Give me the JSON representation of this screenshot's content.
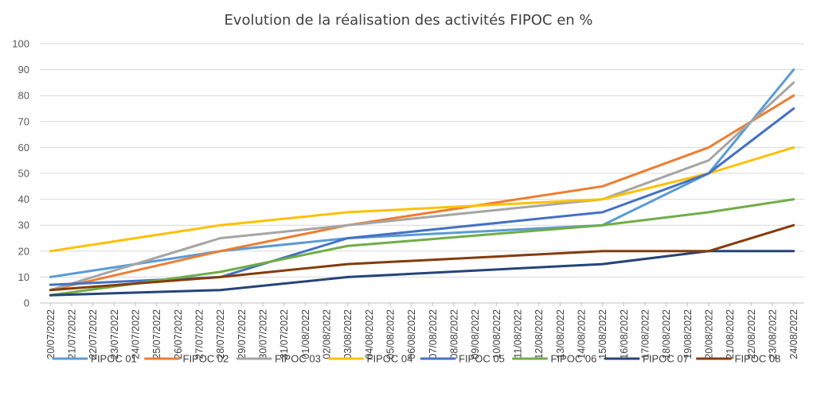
{
  "chart_data": {
    "type": "line",
    "title": "Evolution de la réalisation des activités FIPOC en %",
    "xlabel": "",
    "ylabel": "",
    "ylim": [
      0,
      100
    ],
    "yticks": [
      0,
      10,
      20,
      30,
      40,
      50,
      60,
      70,
      80,
      90,
      100
    ],
    "grid": true,
    "legend_position": "bottom",
    "categories": [
      "20/07/2022",
      "21/07/2022",
      "22/07/2022",
      "23/07/2022",
      "24/07/2022",
      "25/07/2022",
      "26/07/2022",
      "27/07/2022",
      "28/07/2022",
      "29/07/2022",
      "30/07/2022",
      "31/07/2022",
      "01/08/2022",
      "02/08/2022",
      "03/08/2022",
      "04/08/2022",
      "05/08/2022",
      "06/08/2022",
      "07/08/2022",
      "08/08/2022",
      "09/08/2022",
      "10/08/2022",
      "11/08/2022",
      "12/08/2022",
      "13/08/2022",
      "14/08/2022",
      "15/08/2022",
      "16/08/2022",
      "17/08/2022",
      "18/08/2022",
      "19/08/2022",
      "20/08/2022",
      "21/08/2022",
      "22/08/2022",
      "23/08/2022",
      "24/08/2022"
    ],
    "series": [
      {
        "name": "FIPOC 01",
        "color": "#5B9BD5",
        "points": [
          {
            "x": "20/07/2022",
            "y": 10
          },
          {
            "x": "28/07/2022",
            "y": 20
          },
          {
            "x": "03/08/2022",
            "y": 25
          },
          {
            "x": "15/08/2022",
            "y": 30
          },
          {
            "x": "20/08/2022",
            "y": 50
          },
          {
            "x": "24/08/2022",
            "y": 90
          }
        ]
      },
      {
        "name": "FIPOC 02",
        "color": "#ED7D31",
        "points": [
          {
            "x": "20/07/2022",
            "y": 5
          },
          {
            "x": "28/07/2022",
            "y": 20
          },
          {
            "x": "03/08/2022",
            "y": 30
          },
          {
            "x": "15/08/2022",
            "y": 45
          },
          {
            "x": "20/08/2022",
            "y": 60
          },
          {
            "x": "24/08/2022",
            "y": 80
          }
        ]
      },
      {
        "name": "FIPOC 03",
        "color": "#A5A5A5",
        "points": [
          {
            "x": "20/07/2022",
            "y": 5
          },
          {
            "x": "28/07/2022",
            "y": 25
          },
          {
            "x": "03/08/2022",
            "y": 30
          },
          {
            "x": "15/08/2022",
            "y": 40
          },
          {
            "x": "20/08/2022",
            "y": 55
          },
          {
            "x": "24/08/2022",
            "y": 85
          }
        ]
      },
      {
        "name": "FIPOC 04",
        "color": "#FFC000",
        "points": [
          {
            "x": "20/07/2022",
            "y": 20
          },
          {
            "x": "28/07/2022",
            "y": 30
          },
          {
            "x": "03/08/2022",
            "y": 35
          },
          {
            "x": "15/08/2022",
            "y": 40
          },
          {
            "x": "20/08/2022",
            "y": 50
          },
          {
            "x": "24/08/2022",
            "y": 60
          }
        ]
      },
      {
        "name": "FIPOC 05",
        "color": "#4472C4",
        "points": [
          {
            "x": "20/07/2022",
            "y": 7
          },
          {
            "x": "28/07/2022",
            "y": 10
          },
          {
            "x": "03/08/2022",
            "y": 25
          },
          {
            "x": "15/08/2022",
            "y": 35
          },
          {
            "x": "20/08/2022",
            "y": 50
          },
          {
            "x": "24/08/2022",
            "y": 75
          }
        ]
      },
      {
        "name": "FIPOC 06",
        "color": "#70AD47",
        "points": [
          {
            "x": "20/07/2022",
            "y": 3
          },
          {
            "x": "28/07/2022",
            "y": 12
          },
          {
            "x": "03/08/2022",
            "y": 22
          },
          {
            "x": "15/08/2022",
            "y": 30
          },
          {
            "x": "20/08/2022",
            "y": 35
          },
          {
            "x": "24/08/2022",
            "y": 40
          }
        ]
      },
      {
        "name": "FIPOC 07",
        "color": "#264478",
        "points": [
          {
            "x": "20/07/2022",
            "y": 3
          },
          {
            "x": "28/07/2022",
            "y": 5
          },
          {
            "x": "03/08/2022",
            "y": 10
          },
          {
            "x": "15/08/2022",
            "y": 15
          },
          {
            "x": "20/08/2022",
            "y": 20
          },
          {
            "x": "24/08/2022",
            "y": 20
          }
        ]
      },
      {
        "name": "FIPOC 08",
        "color": "#843C0C",
        "points": [
          {
            "x": "20/07/2022",
            "y": 5
          },
          {
            "x": "28/07/2022",
            "y": 10
          },
          {
            "x": "03/08/2022",
            "y": 15
          },
          {
            "x": "15/08/2022",
            "y": 20
          },
          {
            "x": "20/08/2022",
            "y": 20
          },
          {
            "x": "24/08/2022",
            "y": 30
          }
        ]
      }
    ]
  }
}
